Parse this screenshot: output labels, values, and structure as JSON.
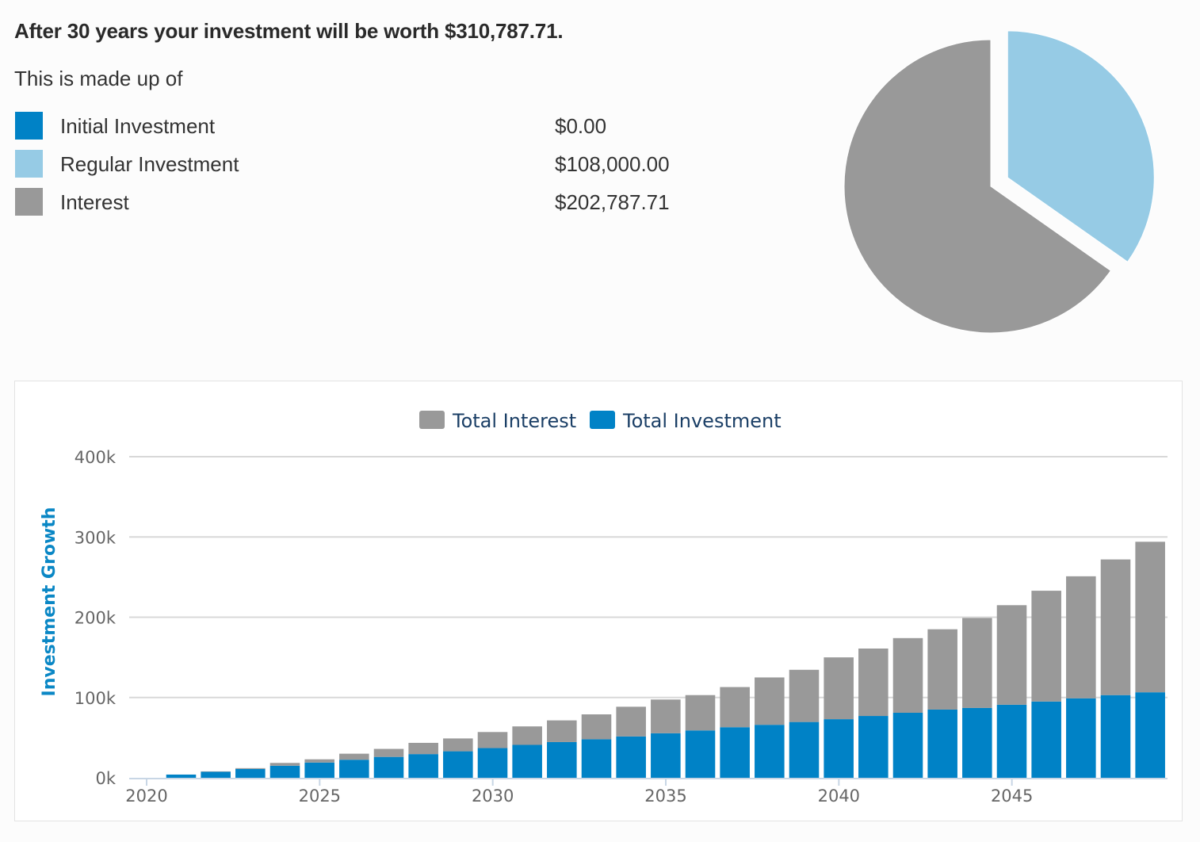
{
  "summary": {
    "headline": "After 30 years your investment will be worth $310,787.71.",
    "subline": "This is made up of",
    "items": [
      {
        "label": "Initial Investment",
        "value": "$0.00",
        "color": "#0082c6"
      },
      {
        "label": "Regular Investment",
        "value": "$108,000.00",
        "color": "#96cbe5"
      },
      {
        "label": "Interest",
        "value": "$202,787.71",
        "color": "#999999"
      }
    ]
  },
  "pie_data": {
    "type": "pie",
    "slices": [
      {
        "label": "Initial Investment",
        "value": 0,
        "color": "#0082c6"
      },
      {
        "label": "Regular Investment",
        "value": 108000,
        "color": "#96cbe5",
        "exploded": true
      },
      {
        "label": "Interest",
        "value": 202787.71,
        "color": "#999999"
      }
    ]
  },
  "chart_data": {
    "type": "bar",
    "stacked": true,
    "ylabel": "Investment Growth",
    "ylim": [
      0,
      400000
    ],
    "y_ticks": [
      0,
      100000,
      200000,
      300000,
      400000
    ],
    "y_tick_labels": [
      "0k",
      "100k",
      "200k",
      "300k",
      "400k"
    ],
    "x_tick_years": [
      2020,
      2025,
      2030,
      2035,
      2040,
      2045
    ],
    "x_tick_labels": [
      "2020",
      "2025",
      "2030",
      "2035",
      "2040",
      "2045"
    ],
    "legend": [
      "Total Interest",
      "Total Investment"
    ],
    "legend_position": "top-center",
    "grid": true,
    "categories": [
      2021,
      2022,
      2023,
      2024,
      2025,
      2026,
      2027,
      2028,
      2029,
      2030,
      2031,
      2032,
      2033,
      2034,
      2035,
      2036,
      2037,
      2038,
      2039,
      2040,
      2041,
      2042,
      2043,
      2044,
      2045,
      2046,
      2047,
      2048,
      2049
    ],
    "series": [
      {
        "name": "Total Investment",
        "color": "#0082c6",
        "values": [
          4000,
          7500,
          11000,
          15000,
          19000,
          22500,
          26000,
          29500,
          33000,
          37000,
          41000,
          44500,
          48000,
          51500,
          55500,
          59000,
          63000,
          66000,
          69500,
          73000,
          77000,
          81000,
          85000,
          87000,
          91000,
          95000,
          99000,
          103000,
          106500
        ]
      },
      {
        "name": "Total Interest",
        "color": "#999999",
        "values": [
          0,
          500,
          1000,
          3500,
          4000,
          7500,
          10000,
          14000,
          16000,
          20000,
          23000,
          27000,
          31000,
          37000,
          42000,
          44000,
          50000,
          59000,
          65000,
          77000,
          84000,
          93000,
          100000,
          112000,
          124000,
          138000,
          152000,
          169000,
          187500
        ]
      }
    ]
  }
}
